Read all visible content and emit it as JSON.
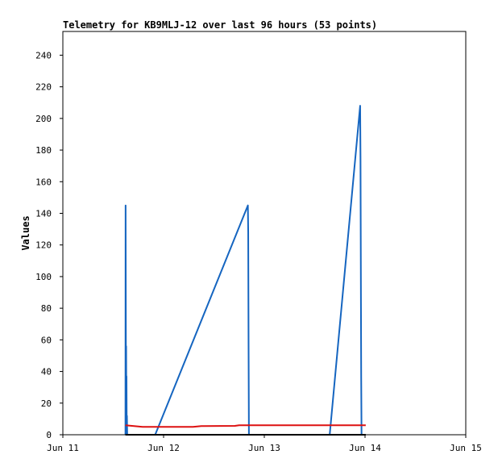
{
  "chart_data": {
    "type": "line",
    "title": "Telemetry for KB9MLJ-12 over last 96 hours (53 points)",
    "xlabel": "",
    "ylabel": "Values",
    "x_ticks": [
      "Jun 11",
      "Jun 12",
      "Jun 13",
      "Jun 14",
      "Jun 15"
    ],
    "xlim": [
      "Jun 11 00:00",
      "Jun 15 00:00"
    ],
    "y_ticks": [
      0,
      20,
      40,
      60,
      80,
      100,
      120,
      140,
      160,
      180,
      200,
      220,
      240
    ],
    "ylim": [
      0,
      255
    ],
    "grid": false,
    "legend": "none",
    "series": [
      {
        "color": "#1565c0",
        "points": [
          [
            "Jun 11 14:55",
            0
          ],
          [
            "Jun 11 14:57",
            145
          ],
          [
            "Jun 11 15:00",
            80
          ],
          [
            "Jun 11 15:03",
            0
          ],
          [
            "Jun 11 15:05",
            56
          ],
          [
            "Jun 11 15:08",
            0
          ],
          [
            "Jun 11 15:10",
            37
          ],
          [
            "Jun 11 15:13",
            0
          ],
          [
            "Jun 11 15:16",
            12
          ],
          [
            "Jun 11 15:20",
            0
          ],
          [
            "Jun 11 22:00",
            0
          ],
          [
            "Jun 12 20:05",
            145
          ],
          [
            "Jun 12 20:10",
            128
          ],
          [
            "Jun 12 20:15",
            56
          ],
          [
            "Jun 12 20:20",
            0
          ],
          [
            "Jun 13 15:35",
            0
          ],
          [
            "Jun 13 22:50",
            208
          ],
          [
            "Jun 13 22:55",
            175
          ],
          [
            "Jun 13 23:00",
            104
          ],
          [
            "Jun 13 23:05",
            36
          ],
          [
            "Jun 13 23:10",
            0
          ]
        ]
      },
      {
        "color": "#dd1111",
        "points": [
          [
            "Jun 11 14:55",
            6
          ],
          [
            "Jun 11 19:00",
            5
          ],
          [
            "Jun 12 07:00",
            5
          ],
          [
            "Jun 12 09:00",
            5.5
          ],
          [
            "Jun 12 17:00",
            5.6
          ],
          [
            "Jun 12 18:00",
            6
          ],
          [
            "Jun 14 00:10",
            6
          ]
        ]
      },
      {
        "color": "#000000",
        "points": [
          [
            "Jun 11 14:55",
            0
          ],
          [
            "Jun 14 00:10",
            0
          ]
        ]
      }
    ]
  }
}
